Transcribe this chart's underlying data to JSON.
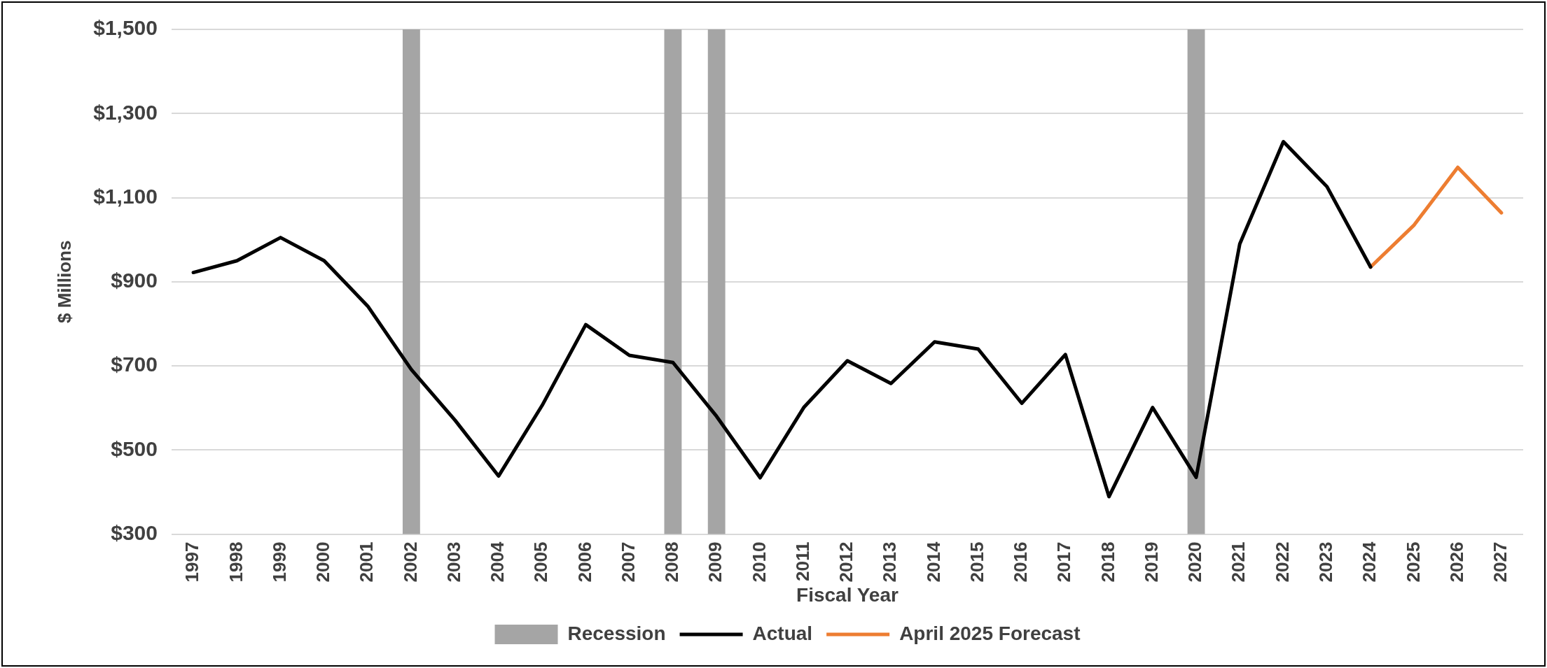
{
  "chart_data": {
    "type": "line",
    "xlabel": "Fiscal Year",
    "ylabel": "$ Millions",
    "categories": [
      "1997",
      "1998",
      "1999",
      "2000",
      "2001",
      "2002",
      "2003",
      "2004",
      "2005",
      "2006",
      "2007",
      "2008",
      "2009",
      "2010",
      "2011",
      "2012",
      "2013",
      "2014",
      "2015",
      "2016",
      "2017",
      "2018",
      "2019",
      "2020",
      "2021",
      "2022",
      "2023",
      "2024",
      "2025",
      "2026",
      "2027"
    ],
    "series": [
      {
        "name": "Recession",
        "type": "bar",
        "color": "#a5a5a5",
        "values": [
          null,
          null,
          null,
          null,
          null,
          1500,
          null,
          null,
          null,
          null,
          null,
          1500,
          1500,
          null,
          null,
          null,
          null,
          null,
          null,
          null,
          null,
          null,
          null,
          1500,
          null,
          null,
          null,
          null,
          null,
          null,
          null
        ]
      },
      {
        "name": "Actual",
        "color": "#000000",
        "values": [
          922,
          950,
          1005,
          950,
          842,
          691,
          571,
          438,
          606,
          798,
          725,
          708,
          580,
          434,
          601,
          712,
          658,
          757,
          740,
          611,
          727,
          389,
          601,
          435,
          990,
          1233,
          1126,
          935,
          null,
          null,
          null
        ]
      },
      {
        "name": "April 2025 Forecast",
        "color": "#ed7d31",
        "values": [
          null,
          null,
          null,
          null,
          null,
          null,
          null,
          null,
          null,
          null,
          null,
          null,
          null,
          null,
          null,
          null,
          null,
          null,
          null,
          null,
          null,
          null,
          null,
          null,
          null,
          null,
          null,
          935,
          1035,
          1172,
          1064
        ]
      }
    ],
    "ylim": [
      300,
      1500
    ],
    "yticks": [
      {
        "value": 300,
        "label": "$300"
      },
      {
        "value": 500,
        "label": "$500"
      },
      {
        "value": 700,
        "label": "$700"
      },
      {
        "value": 900,
        "label": "$900"
      },
      {
        "value": 1100,
        "label": "$1,100"
      },
      {
        "value": 1300,
        "label": "$1,300"
      },
      {
        "value": 1500,
        "label": "$1,500"
      }
    ],
    "grid": "y",
    "legend": "bottom",
    "marker": "none",
    "line_style": "solid"
  }
}
